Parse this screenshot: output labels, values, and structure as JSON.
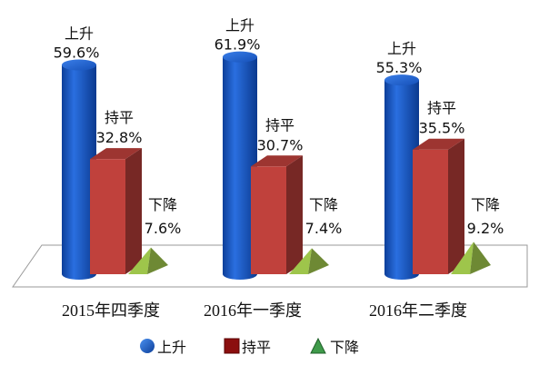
{
  "chart_data": {
    "type": "bar",
    "categories": [
      "2015年四季度",
      "2016年一季度",
      "2016年二季度"
    ],
    "series": [
      {
        "name": "上升",
        "values": [
          59.6,
          61.9,
          55.3
        ],
        "labels": [
          "59.6%",
          "61.9%",
          "55.3%"
        ],
        "color": "#1f5fc8"
      },
      {
        "name": "持平",
        "values": [
          32.8,
          30.7,
          35.5
        ],
        "labels": [
          "32.8%",
          "30.7%",
          "35.5%"
        ],
        "color": "#c0413c"
      },
      {
        "name": "下降",
        "values": [
          7.6,
          7.4,
          9.2
        ],
        "labels": [
          "7.6%",
          "7.4%",
          "9.2%"
        ],
        "color": "#8db043"
      }
    ],
    "ylim": [
      0,
      65
    ],
    "legend_position": "bottom"
  }
}
